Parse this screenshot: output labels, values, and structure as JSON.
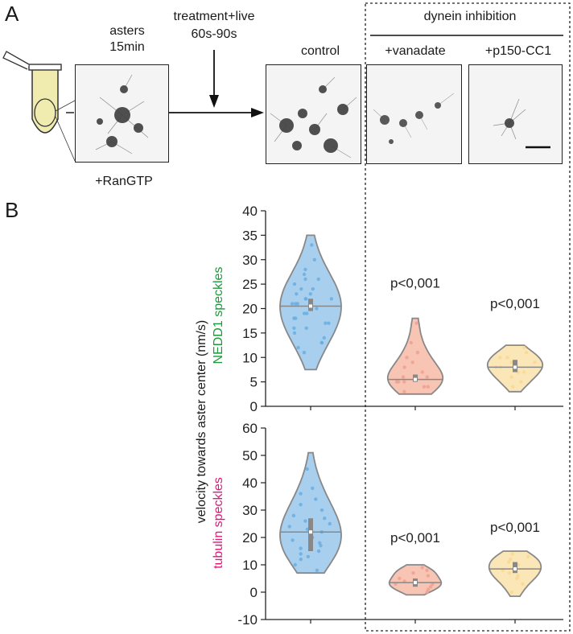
{
  "panel_a": {
    "letter": "A",
    "asters_label_1": "asters",
    "asters_label_2": "15min",
    "treatment_label_1": "treatment+live",
    "treatment_label_2": "60s-90s",
    "rangtp_label": "+RanGTP",
    "control_label": "control",
    "dynein_inhibition_label": "dynein inhibition",
    "vanadate_label": "+vanadate",
    "p150_label": "+p150-CC1"
  },
  "panel_b": {
    "letter": "B",
    "y_axis_label": "velocity towards aster center (nm/s)",
    "top_side_label": "NEDD1 speckles",
    "bottom_side_label": "tubulin speckles",
    "top_side_color": "#1a9a3a",
    "bottom_side_color": "#e0187a"
  },
  "colors": {
    "control": "#6aaee0",
    "vanadate": "#f0a090",
    "p150": "#f8d890",
    "control_fill": "#a8cfee",
    "vanadate_fill": "#f8c4b4",
    "p150_fill": "#fbe6b8"
  },
  "chart_data": [
    {
      "type": "violin",
      "title": "",
      "ylabel": "NEDD1 speckles",
      "ylim": [
        0,
        40
      ],
      "yticks": [
        0,
        5,
        10,
        15,
        20,
        25,
        30,
        35,
        40
      ],
      "categories": [
        "control",
        "+vanadate",
        "+p150-CC1"
      ],
      "series": [
        {
          "name": "control",
          "min": 7.5,
          "max": 35,
          "median": 20.5,
          "q1": 19.5,
          "q3": 22,
          "points": [
            13,
            14,
            15,
            16,
            17,
            18,
            19,
            20,
            20,
            21,
            21,
            22,
            22,
            23,
            23,
            24,
            25,
            26,
            27,
            28,
            12,
            13,
            11,
            17,
            19,
            21,
            24,
            26,
            30,
            33,
            16,
            18,
            22
          ]
        },
        {
          "name": "+vanadate",
          "min": 2.5,
          "max": 18,
          "median": 5.5,
          "q1": 5,
          "q3": 6.5,
          "points": [
            3,
            4,
            4,
            5,
            5,
            5,
            6,
            6,
            6,
            7,
            8,
            9,
            10,
            11,
            13,
            17
          ],
          "annotation": "p<0,001"
        },
        {
          "name": "+p150-CC1",
          "min": 3,
          "max": 12.5,
          "median": 8,
          "q1": 7,
          "q3": 9.5,
          "points": [
            4,
            5,
            6,
            7,
            7,
            8,
            8,
            9,
            9,
            10,
            10,
            11,
            12
          ],
          "annotation": "p<0,001"
        }
      ]
    },
    {
      "type": "violin",
      "title": "",
      "ylabel": "tubulin speckles",
      "ylim": [
        -10,
        60
      ],
      "yticks": [
        -10,
        0,
        10,
        20,
        30,
        40,
        50,
        60
      ],
      "categories": [
        "control",
        "+vanadate",
        "+p150-CC1"
      ],
      "series": [
        {
          "name": "control",
          "min": 7,
          "max": 51,
          "median": 22,
          "q1": 15,
          "q3": 27,
          "points": [
            8,
            10,
            12,
            14,
            15,
            16,
            18,
            19,
            20,
            21,
            22,
            23,
            24,
            25,
            26,
            27,
            28,
            30,
            32,
            34,
            36,
            38,
            45,
            17,
            13
          ]
        },
        {
          "name": "+vanadate",
          "min": -1,
          "max": 10,
          "median": 3.5,
          "q1": 2,
          "q3": 5,
          "points": [
            0,
            1,
            2,
            3,
            3,
            4,
            5,
            6,
            7,
            8,
            9
          ]
        },
        {
          "name": "+p150-CC1",
          "min": -1.5,
          "max": 15,
          "median": 8.5,
          "q1": 7,
          "q3": 11,
          "points": [
            0,
            3,
            5,
            6,
            7,
            8,
            9,
            10,
            11,
            12,
            13,
            14
          ]
        }
      ],
      "annotations": [
        "p<0,001",
        "p<0,001"
      ]
    }
  ]
}
